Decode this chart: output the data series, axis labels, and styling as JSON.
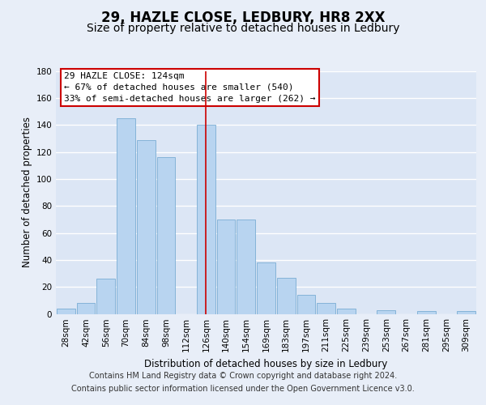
{
  "title": "29, HAZLE CLOSE, LEDBURY, HR8 2XX",
  "subtitle": "Size of property relative to detached houses in Ledbury",
  "xlabel": "Distribution of detached houses by size in Ledbury",
  "ylabel": "Number of detached properties",
  "categories": [
    "28sqm",
    "42sqm",
    "56sqm",
    "70sqm",
    "84sqm",
    "98sqm",
    "112sqm",
    "126sqm",
    "140sqm",
    "154sqm",
    "169sqm",
    "183sqm",
    "197sqm",
    "211sqm",
    "225sqm",
    "239sqm",
    "253sqm",
    "267sqm",
    "281sqm",
    "295sqm",
    "309sqm"
  ],
  "values": [
    4,
    8,
    26,
    145,
    129,
    116,
    0,
    140,
    70,
    70,
    38,
    27,
    14,
    8,
    4,
    0,
    3,
    0,
    2,
    0,
    2
  ],
  "bar_color": "#b8d4f0",
  "bar_edge_color": "#7aadd4",
  "highlight_index": 7,
  "highlight_line_color": "#cc0000",
  "ylim": [
    0,
    180
  ],
  "yticks": [
    0,
    20,
    40,
    60,
    80,
    100,
    120,
    140,
    160,
    180
  ],
  "annotation_title": "29 HAZLE CLOSE: 124sqm",
  "annotation_line1": "← 67% of detached houses are smaller (540)",
  "annotation_line2": "33% of semi-detached houses are larger (262) →",
  "annotation_box_color": "#ffffff",
  "annotation_box_edge": "#cc0000",
  "footer_line1": "Contains HM Land Registry data © Crown copyright and database right 2024.",
  "footer_line2": "Contains public sector information licensed under the Open Government Licence v3.0.",
  "background_color": "#e8eef8",
  "plot_background": "#dce6f5",
  "grid_color": "#ffffff",
  "title_fontsize": 12,
  "subtitle_fontsize": 10,
  "axis_label_fontsize": 8.5,
  "tick_fontsize": 7.5,
  "footer_fontsize": 7
}
